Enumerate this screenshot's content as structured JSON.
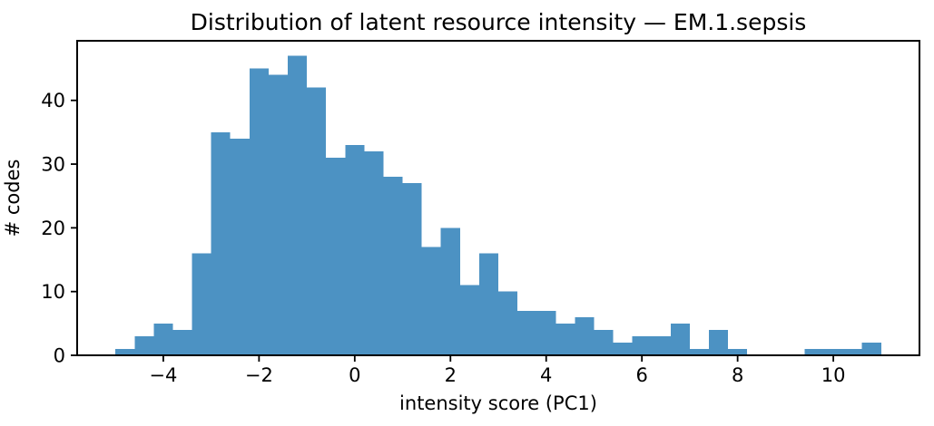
{
  "chart_data": {
    "type": "bar",
    "subtype": "histogram",
    "title": "Distribution of latent resource intensity — EM.1.sepsis",
    "xlabel": "intensity score (PC1)",
    "ylabel": "# codes",
    "bin_start": -5.0,
    "bin_width": 0.4,
    "counts": [
      1,
      3,
      5,
      4,
      16,
      35,
      34,
      45,
      44,
      47,
      42,
      31,
      33,
      32,
      28,
      27,
      17,
      20,
      11,
      16,
      10,
      7,
      7,
      5,
      6,
      4,
      2,
      3,
      3,
      5,
      1,
      4,
      1,
      0,
      0,
      0,
      1,
      1,
      1,
      2
    ],
    "xticks": [
      {
        "v": -4,
        "label": "−4"
      },
      {
        "v": -2,
        "label": "−2"
      },
      {
        "v": 0,
        "label": "0"
      },
      {
        "v": 2,
        "label": "2"
      },
      {
        "v": 4,
        "label": "4"
      },
      {
        "v": 6,
        "label": "6"
      },
      {
        "v": 8,
        "label": "8"
      },
      {
        "v": 10,
        "label": "10"
      }
    ],
    "yticks": [
      {
        "v": 0,
        "label": "0"
      },
      {
        "v": 10,
        "label": "10"
      },
      {
        "v": 20,
        "label": "20"
      },
      {
        "v": 30,
        "label": "30"
      },
      {
        "v": 40,
        "label": "40"
      }
    ],
    "xlim": [
      -5.8,
      11.8
    ],
    "ylim": [
      0,
      49.35
    ],
    "bar_color": "#4c92c3",
    "axis_color": "#000000",
    "grid": false,
    "legend": null
  }
}
